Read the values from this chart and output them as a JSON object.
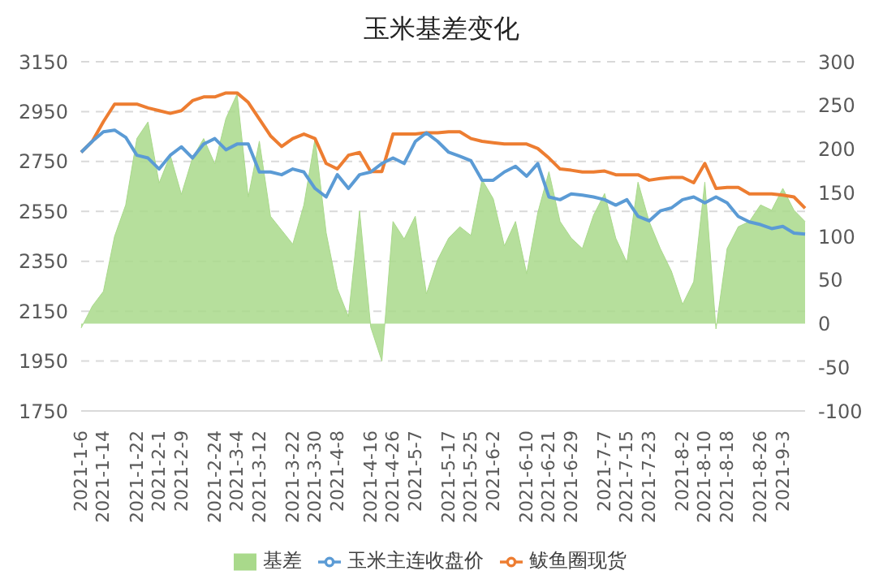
{
  "chart_data": {
    "type": "line",
    "title": "玉米基差变化",
    "categories": [
      "2021-1-6",
      null,
      "2021-1-14",
      null,
      null,
      "2021-1-22",
      null,
      "2021-2-1",
      null,
      "2021-2-9",
      null,
      null,
      "2021-2-24",
      null,
      "2021-3-4",
      null,
      "2021-3-12",
      null,
      null,
      "2021-3-22",
      null,
      "2021-3-30",
      null,
      "2021-4-8",
      null,
      null,
      "2021-4-16",
      null,
      "2021-4-26",
      null,
      "2021-5-7",
      null,
      null,
      "2021-5-17",
      null,
      "2021-5-25",
      null,
      "2021-6-2",
      null,
      null,
      "2021-6-10",
      null,
      "2021-6-21",
      null,
      "2021-6-29",
      null,
      null,
      "2021-7-7",
      null,
      "2021-7-15",
      null,
      "2021-7-23",
      null,
      null,
      "2021-8-2",
      null,
      "2021-8-10",
      null,
      "2021-8-18",
      null,
      null,
      "2021-8-26",
      null,
      "2021-9-3",
      null,
      null
    ],
    "series": [
      {
        "name": "基差",
        "type": "area",
        "axis": "y2",
        "color": "#a9d98b",
        "values": [
          -5,
          20,
          37,
          100,
          136,
          212,
          231,
          161,
          193,
          148,
          190,
          212,
          183,
          235,
          263,
          145,
          209,
          123,
          107,
          91,
          136,
          212,
          104,
          40,
          8,
          129,
          -4,
          -43,
          117,
          97,
          123,
          34,
          73,
          98,
          111,
          101,
          165,
          143,
          89,
          117,
          57,
          127,
          174,
          117,
          98,
          86,
          124,
          149,
          98,
          70,
          162,
          117,
          86,
          60,
          22,
          48,
          162,
          -6,
          86,
          111,
          117,
          136,
          130,
          155,
          130,
          117
        ]
      },
      {
        "name": "鲅鱼圈现货",
        "color": "#ed7d31",
        "values": [
          2787,
          2831,
          2910,
          2980,
          2980,
          2980,
          2965,
          2954,
          2943,
          2954,
          2994,
          3009,
          3009,
          3025,
          3025,
          2987,
          2920,
          2853,
          2810,
          2842,
          2860,
          2842,
          2742,
          2720,
          2775,
          2786,
          2710,
          2710,
          2860,
          2860,
          2860,
          2865,
          2865,
          2869,
          2869,
          2842,
          2831,
          2825,
          2820,
          2820,
          2820,
          2802,
          2764,
          2720,
          2715,
          2708,
          2708,
          2712,
          2697,
          2697,
          2697,
          2675,
          2682,
          2686,
          2686,
          2665,
          2742,
          2642,
          2646,
          2646,
          2620,
          2620,
          2620,
          2615,
          2608,
          2563
        ]
      },
      {
        "name": "玉米主连收盘价",
        "color": "#5b9bd5",
        "values": [
          2787,
          2831,
          2869,
          2876,
          2847,
          2775,
          2764,
          2720,
          2775,
          2809,
          2764,
          2820,
          2842,
          2797,
          2820,
          2820,
          2708,
          2708,
          2697,
          2720,
          2708,
          2642,
          2608,
          2697,
          2642,
          2697,
          2708,
          2742,
          2764,
          2742,
          2830,
          2865,
          2831,
          2787,
          2771,
          2753,
          2675,
          2675,
          2708,
          2731,
          2691,
          2742,
          2608,
          2597,
          2620,
          2615,
          2608,
          2597,
          2575,
          2597,
          2530,
          2512,
          2552,
          2564,
          2597,
          2608,
          2584,
          2608,
          2584,
          2530,
          2508,
          2497,
          2481,
          2490,
          2463,
          2459
        ]
      }
    ],
    "ylim": [
      1750,
      3150
    ],
    "yticks": [
      1750,
      1950,
      2150,
      2350,
      2550,
      2750,
      2950,
      3150
    ],
    "y2lim": [
      -100,
      300
    ],
    "y2ticks": [
      -100,
      -50,
      0,
      50,
      100,
      150,
      200,
      250,
      300
    ],
    "grid": "y",
    "legend": "bottom",
    "marker": "none",
    "line_style": "solid"
  }
}
